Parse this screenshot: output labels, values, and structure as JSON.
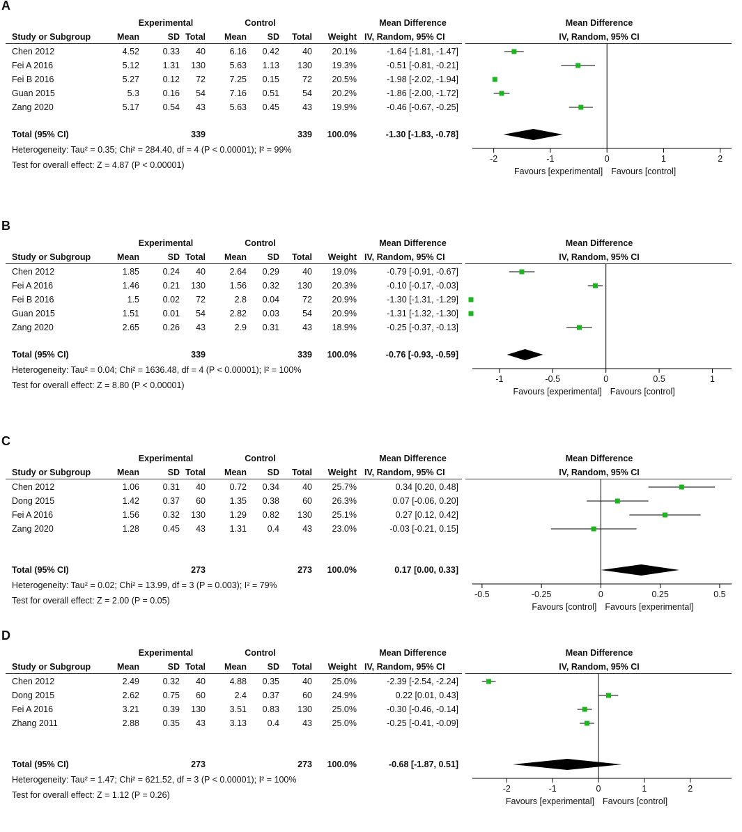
{
  "headers": {
    "experimental": "Experimental",
    "control": "Control",
    "mean_difference": "Mean Difference",
    "study_or_subgroup": "Study or Subgroup",
    "mean": "Mean",
    "sd": "SD",
    "total": "Total",
    "weight": "Weight",
    "ci_method": "IV, Random, 95% CI"
  },
  "chart_data": [
    {
      "type": "forest",
      "label": "A",
      "studies": [
        {
          "name": "Chen 2012",
          "e_mean": "4.52",
          "e_sd": "0.33",
          "e_total": "40",
          "c_mean": "6.16",
          "c_sd": "0.42",
          "c_total": "40",
          "weight": "20.1%",
          "ci_text": "-1.64 [-1.81, -1.47]",
          "md": -1.64,
          "lo": -1.81,
          "hi": -1.47
        },
        {
          "name": "Fei A 2016",
          "e_mean": "5.12",
          "e_sd": "1.31",
          "e_total": "130",
          "c_mean": "5.63",
          "c_sd": "1.13",
          "c_total": "130",
          "weight": "19.3%",
          "ci_text": "-0.51 [-0.81, -0.21]",
          "md": -0.51,
          "lo": -0.81,
          "hi": -0.21
        },
        {
          "name": "Fei B 2016",
          "e_mean": "5.27",
          "e_sd": "0.12",
          "e_total": "72",
          "c_mean": "7.25",
          "c_sd": "0.15",
          "c_total": "72",
          "weight": "20.5%",
          "ci_text": "-1.98 [-2.02, -1.94]",
          "md": -1.98,
          "lo": -2.02,
          "hi": -1.94
        },
        {
          "name": "Guan 2015",
          "e_mean": "5.3",
          "e_sd": "0.16",
          "e_total": "54",
          "c_mean": "7.16",
          "c_sd": "0.51",
          "c_total": "54",
          "weight": "20.2%",
          "ci_text": "-1.86 [-2.00, -1.72]",
          "md": -1.86,
          "lo": -2.0,
          "hi": -1.72
        },
        {
          "name": "Zang 2020",
          "e_mean": "5.17",
          "e_sd": "0.54",
          "e_total": "43",
          "c_mean": "5.63",
          "c_sd": "0.45",
          "c_total": "43",
          "weight": "19.9%",
          "ci_text": "-0.46 [-0.67, -0.25]",
          "md": -0.46,
          "lo": -0.67,
          "hi": -0.25
        }
      ],
      "total": {
        "label": "Total (95% CI)",
        "e_total": "339",
        "c_total": "339",
        "weight": "100.0%",
        "ci_text": "-1.30 [-1.83, -0.78]",
        "md": -1.3,
        "lo": -1.83,
        "hi": -0.78
      },
      "heterogeneity": "Heterogeneity: Tau² = 0.35; Chi² = 284.40, df = 4 (P < 0.00001); I² = 99%",
      "overall_effect": "Test for overall effect: Z = 4.87 (P < 0.00001)",
      "xlim": [
        -2.5,
        2.2
      ],
      "ticks": [
        {
          "v": -2,
          "label": "-2"
        },
        {
          "v": -1,
          "label": "-1"
        },
        {
          "v": 0,
          "label": "0"
        },
        {
          "v": 1,
          "label": "1"
        },
        {
          "v": 2,
          "label": "2"
        }
      ],
      "favours_left": "Favours [experimental]",
      "favours_right": "Favours [control]"
    },
    {
      "type": "forest",
      "label": "B",
      "studies": [
        {
          "name": "Chen 2012",
          "e_mean": "1.85",
          "e_sd": "0.24",
          "e_total": "40",
          "c_mean": "2.64",
          "c_sd": "0.29",
          "c_total": "40",
          "weight": "19.0%",
          "ci_text": "-0.79 [-0.91, -0.67]",
          "md": -0.79,
          "lo": -0.91,
          "hi": -0.67
        },
        {
          "name": "Fei A 2016",
          "e_mean": "1.46",
          "e_sd": "0.21",
          "e_total": "130",
          "c_mean": "1.56",
          "c_sd": "0.32",
          "c_total": "130",
          "weight": "20.3%",
          "ci_text": "-0.10 [-0.17, -0.03]",
          "md": -0.1,
          "lo": -0.17,
          "hi": -0.03
        },
        {
          "name": "Fei B 2016",
          "e_mean": "1.5",
          "e_sd": "0.02",
          "e_total": "72",
          "c_mean": "2.8",
          "c_sd": "0.04",
          "c_total": "72",
          "weight": "20.9%",
          "ci_text": "-1.30 [-1.31, -1.29]",
          "md": -1.3,
          "lo": -1.31,
          "hi": -1.29
        },
        {
          "name": "Guan 2015",
          "e_mean": "1.51",
          "e_sd": "0.01",
          "e_total": "54",
          "c_mean": "2.82",
          "c_sd": "0.03",
          "c_total": "54",
          "weight": "20.9%",
          "ci_text": "-1.31 [-1.32, -1.30]",
          "md": -1.31,
          "lo": -1.32,
          "hi": -1.3
        },
        {
          "name": "Zang 2020",
          "e_mean": "2.65",
          "e_sd": "0.26",
          "e_total": "43",
          "c_mean": "2.9",
          "c_sd": "0.31",
          "c_total": "43",
          "weight": "18.9%",
          "ci_text": "-0.25 [-0.37, -0.13]",
          "md": -0.25,
          "lo": -0.37,
          "hi": -0.13
        }
      ],
      "total": {
        "label": "Total (95% CI)",
        "e_total": "339",
        "c_total": "339",
        "weight": "100.0%",
        "ci_text": "-0.76 [-0.93, -0.59]",
        "md": -0.76,
        "lo": -0.93,
        "hi": -0.59
      },
      "heterogeneity": "Heterogeneity: Tau² = 0.04; Chi² = 1636.48, df = 4 (P < 0.00001); I² = 100%",
      "overall_effect": "Test for overall effect: Z = 8.80 (P < 0.00001)",
      "xlim": [
        -1.32,
        1.18
      ],
      "ticks": [
        {
          "v": -1,
          "label": "-1"
        },
        {
          "v": -0.5,
          "label": "-0.5"
        },
        {
          "v": 0,
          "label": "0"
        },
        {
          "v": 0.5,
          "label": "0.5"
        },
        {
          "v": 1,
          "label": "1"
        }
      ],
      "favours_left": "Favours [experimental]",
      "favours_right": "Favours [control]"
    },
    {
      "type": "forest",
      "label": "C",
      "studies": [
        {
          "name": "Chen 2012",
          "e_mean": "1.06",
          "e_sd": "0.31",
          "e_total": "40",
          "c_mean": "0.72",
          "c_sd": "0.34",
          "c_total": "40",
          "weight": "25.7%",
          "ci_text": "0.34 [0.20, 0.48]",
          "md": 0.34,
          "lo": 0.2,
          "hi": 0.48
        },
        {
          "name": "Dong 2015",
          "e_mean": "1.42",
          "e_sd": "0.37",
          "e_total": "60",
          "c_mean": "1.35",
          "c_sd": "0.38",
          "c_total": "60",
          "weight": "26.3%",
          "ci_text": "0.07 [-0.06, 0.20]",
          "md": 0.07,
          "lo": -0.06,
          "hi": 0.2
        },
        {
          "name": "Fei A 2016",
          "e_mean": "1.56",
          "e_sd": "0.32",
          "e_total": "130",
          "c_mean": "1.29",
          "c_sd": "0.82",
          "c_total": "130",
          "weight": "25.1%",
          "ci_text": "0.27 [0.12, 0.42]",
          "md": 0.27,
          "lo": 0.12,
          "hi": 0.42
        },
        {
          "name": "Zang 2020",
          "e_mean": "1.28",
          "e_sd": "0.45",
          "e_total": "43",
          "c_mean": "1.31",
          "c_sd": "0.4",
          "c_total": "43",
          "weight": "23.0%",
          "ci_text": "-0.03 [-0.21, 0.15]",
          "md": -0.03,
          "lo": -0.21,
          "hi": 0.15
        }
      ],
      "total": {
        "label": "Total (95% CI)",
        "e_total": "273",
        "c_total": "273",
        "weight": "100.0%",
        "ci_text": "0.17 [0.00, 0.33]",
        "md": 0.17,
        "lo": 0.0,
        "hi": 0.33
      },
      "heterogeneity": "Heterogeneity: Tau² = 0.02; Chi² = 13.99, df = 3 (P = 0.003); I² = 79%",
      "overall_effect": "Test for overall effect: Z = 2.00 (P = 0.05)",
      "xlim": [
        -0.57,
        0.55
      ],
      "ticks": [
        {
          "v": -0.5,
          "label": "-0.5"
        },
        {
          "v": -0.25,
          "label": "-0.25"
        },
        {
          "v": 0,
          "label": "0"
        },
        {
          "v": 0.25,
          "label": "0.25"
        },
        {
          "v": 0.5,
          "label": "0.5"
        }
      ],
      "favours_left": "Favours [control]",
      "favours_right": "Favours [experimental]"
    },
    {
      "type": "forest",
      "label": "D",
      "studies": [
        {
          "name": "Chen 2012",
          "e_mean": "2.49",
          "e_sd": "0.32",
          "e_total": "40",
          "c_mean": "4.88",
          "c_sd": "0.35",
          "c_total": "40",
          "weight": "25.0%",
          "ci_text": "-2.39 [-2.54, -2.24]",
          "md": -2.39,
          "lo": -2.54,
          "hi": -2.24
        },
        {
          "name": "Dong 2015",
          "e_mean": "2.62",
          "e_sd": "0.75",
          "e_total": "60",
          "c_mean": "2.4",
          "c_sd": "0.37",
          "c_total": "60",
          "weight": "24.9%",
          "ci_text": "0.22 [0.01, 0.43]",
          "md": 0.22,
          "lo": 0.01,
          "hi": 0.43
        },
        {
          "name": "Fei A 2016",
          "e_mean": "3.21",
          "e_sd": "0.39",
          "e_total": "130",
          "c_mean": "3.51",
          "c_sd": "0.83",
          "c_total": "130",
          "weight": "25.0%",
          "ci_text": "-0.30 [-0.46, -0.14]",
          "md": -0.3,
          "lo": -0.46,
          "hi": -0.14
        },
        {
          "name": "Zhang 2011",
          "e_mean": "2.88",
          "e_sd": "0.35",
          "e_total": "43",
          "c_mean": "3.13",
          "c_sd": "0.4",
          "c_total": "43",
          "weight": "25.0%",
          "ci_text": "-0.25 [-0.41, -0.09]",
          "md": -0.25,
          "lo": -0.41,
          "hi": -0.09
        }
      ],
      "total": {
        "label": "Total (95% CI)",
        "e_total": "273",
        "c_total": "273",
        "weight": "100.0%",
        "ci_text": "-0.68 [-1.87, 0.51]",
        "md": -0.68,
        "lo": -1.87,
        "hi": 0.51
      },
      "heterogeneity": "Heterogeneity: Tau² = 1.47; Chi² = 621.52, df = 3 (P < 0.00001); I² = 100%",
      "overall_effect": "Test for overall effect: Z = 1.12 (P = 0.26)",
      "xlim": [
        -2.9,
        2.9
      ],
      "ticks": [
        {
          "v": -2,
          "label": "-2"
        },
        {
          "v": -1,
          "label": "-1"
        },
        {
          "v": 0,
          "label": "0"
        },
        {
          "v": 1,
          "label": "1"
        },
        {
          "v": 2,
          "label": "2"
        }
      ],
      "favours_left": "Favours [experimental]",
      "favours_right": "Favours [control]"
    }
  ],
  "colors": {
    "marker": "#1db41d",
    "line": "#000000",
    "diamond": "#000000"
  }
}
